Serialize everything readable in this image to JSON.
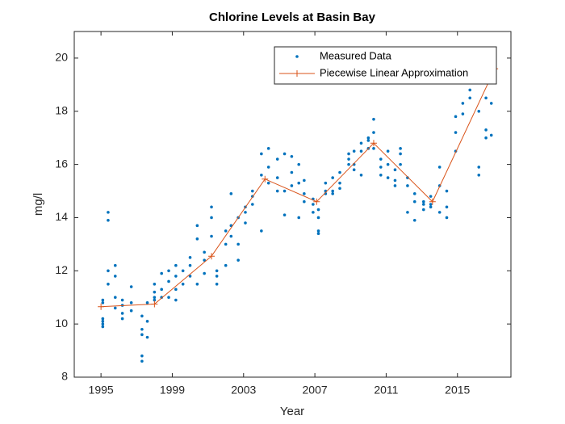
{
  "chart_data": {
    "type": "scatter",
    "title": "Chlorine Levels at Basin Bay",
    "x_label": "Year",
    "y_label": "mg/l",
    "xlim": [
      1993.5,
      2018
    ],
    "ylim": [
      8,
      21
    ],
    "xticks": [
      1995,
      1999,
      2003,
      2007,
      2011,
      2015
    ],
    "yticks": [
      8,
      10,
      12,
      14,
      16,
      18,
      20
    ],
    "legend": "top-right",
    "series": [
      {
        "name": "Measured Data",
        "type": "scatter",
        "color": "#0072BD",
        "x": [
          1995.1,
          1995.1,
          1995.1,
          1995.1,
          1995.1,
          1995.1,
          1995.4,
          1995.4,
          1995.4,
          1995.4,
          1995.8,
          1995.8,
          1995.8,
          1995.8,
          1996.2,
          1996.2,
          1996.2,
          1996.2,
          1996.7,
          1996.7,
          1996.7,
          1997.3,
          1997.3,
          1997.3,
          1997.3,
          1997.3,
          1997.6,
          1997.6,
          1997.6,
          1998.0,
          1998.0,
          1998.0,
          1998.0,
          1998.4,
          1998.4,
          1998.4,
          1998.8,
          1998.8,
          1998.8,
          1999.2,
          1999.2,
          1999.2,
          1999.2,
          1999.6,
          1999.6,
          2000.0,
          2000.0,
          2000.0,
          2000.4,
          2000.4,
          2000.4,
          2000.8,
          2000.8,
          2000.8,
          2001.2,
          2001.2,
          2001.2,
          2001.5,
          2001.5,
          2001.5,
          2002.0,
          2002.0,
          2002.0,
          2002.3,
          2002.3,
          2002.3,
          2002.7,
          2002.7,
          2002.7,
          2003.1,
          2003.1,
          2003.1,
          2003.5,
          2003.5,
          2003.5,
          2004.0,
          2004.0,
          2004.0,
          2004.4,
          2004.4,
          2004.4,
          2004.9,
          2004.9,
          2004.9,
          2005.3,
          2005.3,
          2005.3,
          2005.7,
          2005.7,
          2005.7,
          2006.1,
          2006.1,
          2006.1,
          2006.4,
          2006.4,
          2006.4,
          2006.9,
          2006.9,
          2006.9,
          2007.2,
          2007.2,
          2007.2,
          2007.2,
          2007.6,
          2007.6,
          2007.6,
          2008.0,
          2008.0,
          2008.0,
          2008.4,
          2008.4,
          2008.4,
          2008.9,
          2008.9,
          2008.9,
          2009.2,
          2009.2,
          2009.2,
          2009.6,
          2009.6,
          2009.6,
          2010.0,
          2010.0,
          2010.0,
          2010.3,
          2010.3,
          2010.3,
          2010.7,
          2010.7,
          2010.7,
          2011.1,
          2011.1,
          2011.1,
          2011.5,
          2011.5,
          2011.5,
          2011.8,
          2011.8,
          2011.8,
          2012.2,
          2012.2,
          2012.2,
          2012.6,
          2012.6,
          2012.6,
          2013.1,
          2013.1,
          2013.1,
          2013.5,
          2013.5,
          2013.5,
          2014.0,
          2014.0,
          2014.0,
          2014.4,
          2014.4,
          2014.4,
          2014.9,
          2014.9,
          2014.9,
          2015.3,
          2015.3,
          2015.3,
          2015.7,
          2015.7,
          2015.7,
          2016.2,
          2016.2,
          2016.2,
          2016.6,
          2016.6,
          2016.6,
          2016.9,
          2016.9,
          2016.9
        ],
        "values": [
          10.0,
          10.1,
          10.2,
          9.9,
          10.8,
          10.9,
          14.2,
          13.9,
          12.0,
          11.5,
          10.6,
          11.0,
          12.2,
          11.8,
          10.4,
          10.7,
          10.9,
          10.2,
          10.8,
          10.5,
          11.4,
          9.6,
          9.8,
          10.3,
          8.8,
          8.6,
          9.5,
          10.1,
          10.8,
          10.9,
          11.2,
          11.5,
          11.0,
          11.0,
          11.9,
          11.3,
          11.6,
          12.0,
          11.0,
          12.2,
          11.8,
          11.3,
          10.9,
          11.5,
          12.0,
          12.5,
          12.2,
          11.8,
          13.7,
          13.2,
          11.5,
          12.7,
          12.4,
          11.9,
          14.4,
          14.0,
          13.3,
          11.5,
          11.8,
          12.0,
          13.0,
          13.5,
          12.2,
          14.9,
          13.7,
          13.3,
          14.0,
          12.4,
          13.0,
          14.2,
          13.8,
          14.4,
          15.0,
          14.8,
          14.5,
          16.4,
          15.6,
          13.5,
          16.6,
          15.9,
          15.3,
          15.5,
          16.2,
          15.0,
          16.4,
          15.0,
          14.1,
          16.3,
          15.7,
          15.2,
          15.3,
          16.0,
          14.0,
          15.4,
          14.6,
          14.9,
          14.2,
          14.5,
          14.7,
          14.0,
          14.3,
          13.5,
          13.4,
          15.0,
          14.9,
          15.3,
          15.5,
          14.9,
          15.0,
          15.3,
          15.7,
          15.1,
          16.0,
          16.4,
          16.2,
          15.8,
          16.0,
          16.5,
          16.8,
          16.5,
          15.6,
          17.0,
          16.6,
          16.9,
          17.2,
          17.7,
          16.6,
          16.2,
          15.9,
          15.6,
          16.5,
          15.5,
          16.0,
          15.4,
          15.8,
          15.2,
          16.6,
          16.4,
          16.0,
          15.5,
          15.2,
          14.2,
          14.9,
          13.9,
          14.6,
          14.6,
          14.3,
          14.5,
          14.8,
          14.4,
          14.5,
          15.2,
          15.9,
          14.2,
          15.0,
          14.0,
          14.4,
          17.2,
          17.8,
          16.5,
          18.3,
          17.9,
          19.1,
          19.3,
          18.8,
          18.5,
          15.9,
          15.6,
          18.0,
          17.0,
          17.3,
          18.5,
          19.5,
          18.3,
          17.1
        ]
      },
      {
        "name": "Piecewise Linear Approximation",
        "type": "line",
        "color": "#D95319",
        "x": [
          1995,
          1998,
          2001.2,
          2004.2,
          2007.1,
          2010.3,
          2013.6,
          2017.1
        ],
        "values": [
          10.65,
          10.75,
          12.55,
          15.45,
          14.6,
          16.8,
          14.6,
          19.6
        ]
      }
    ]
  }
}
